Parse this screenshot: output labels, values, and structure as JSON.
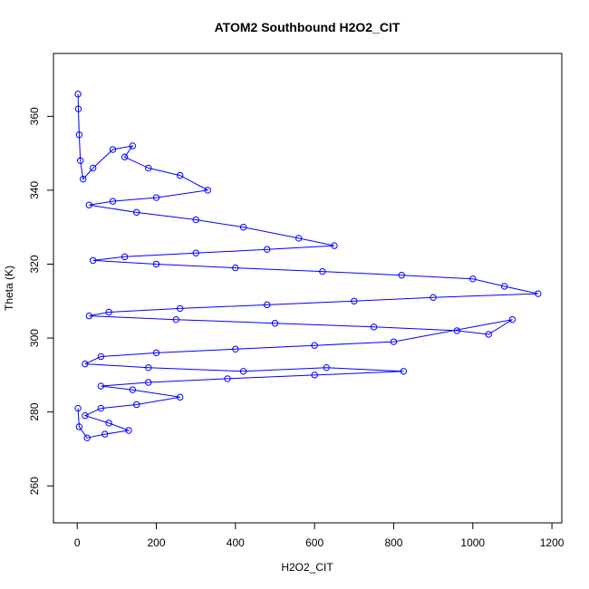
{
  "chart_data": {
    "type": "scatter",
    "title": "ATOM2 Southbound H2O2_CIT",
    "xlabel": "H2O2_CIT",
    "ylabel": "Theta (K)",
    "xlim": [
      -60,
      1225
    ],
    "ylim": [
      250,
      377
    ],
    "x_ticks": [
      0,
      200,
      400,
      600,
      800,
      1000,
      1200
    ],
    "y_ticks": [
      260,
      280,
      300,
      320,
      340,
      360
    ],
    "grid": false,
    "legend": "none",
    "marker": "open-circle",
    "connected": true,
    "series_color": "#0000ff",
    "series": [
      {
        "values": [
          {
            "x": 2,
            "y": 366
          },
          {
            "x": 3,
            "y": 362
          },
          {
            "x": 5,
            "y": 355
          },
          {
            "x": 8,
            "y": 348
          },
          {
            "x": 15,
            "y": 343
          },
          {
            "x": 40,
            "y": 346
          },
          {
            "x": 90,
            "y": 351
          },
          {
            "x": 140,
            "y": 352
          },
          {
            "x": 120,
            "y": 349
          },
          {
            "x": 180,
            "y": 346
          },
          {
            "x": 260,
            "y": 344
          },
          {
            "x": 330,
            "y": 340
          },
          {
            "x": 200,
            "y": 338
          },
          {
            "x": 90,
            "y": 337
          },
          {
            "x": 30,
            "y": 336
          },
          {
            "x": 150,
            "y": 334
          },
          {
            "x": 300,
            "y": 332
          },
          {
            "x": 420,
            "y": 330
          },
          {
            "x": 560,
            "y": 327
          },
          {
            "x": 650,
            "y": 325
          },
          {
            "x": 480,
            "y": 324
          },
          {
            "x": 300,
            "y": 323
          },
          {
            "x": 120,
            "y": 322
          },
          {
            "x": 40,
            "y": 321
          },
          {
            "x": 200,
            "y": 320
          },
          {
            "x": 400,
            "y": 319
          },
          {
            "x": 620,
            "y": 318
          },
          {
            "x": 820,
            "y": 317
          },
          {
            "x": 1000,
            "y": 316
          },
          {
            "x": 1080,
            "y": 314
          },
          {
            "x": 1165,
            "y": 312
          },
          {
            "x": 900,
            "y": 311
          },
          {
            "x": 700,
            "y": 310
          },
          {
            "x": 480,
            "y": 309
          },
          {
            "x": 260,
            "y": 308
          },
          {
            "x": 80,
            "y": 307
          },
          {
            "x": 30,
            "y": 306
          },
          {
            "x": 250,
            "y": 305
          },
          {
            "x": 500,
            "y": 304
          },
          {
            "x": 750,
            "y": 303
          },
          {
            "x": 960,
            "y": 302
          },
          {
            "x": 1040,
            "y": 301
          },
          {
            "x": 1100,
            "y": 305
          },
          {
            "x": 800,
            "y": 299
          },
          {
            "x": 600,
            "y": 298
          },
          {
            "x": 400,
            "y": 297
          },
          {
            "x": 200,
            "y": 296
          },
          {
            "x": 60,
            "y": 295
          },
          {
            "x": 20,
            "y": 293
          },
          {
            "x": 180,
            "y": 292
          },
          {
            "x": 420,
            "y": 291
          },
          {
            "x": 630,
            "y": 292
          },
          {
            "x": 825,
            "y": 291
          },
          {
            "x": 600,
            "y": 290
          },
          {
            "x": 380,
            "y": 289
          },
          {
            "x": 180,
            "y": 288
          },
          {
            "x": 60,
            "y": 287
          },
          {
            "x": 140,
            "y": 286
          },
          {
            "x": 260,
            "y": 284
          },
          {
            "x": 150,
            "y": 282
          },
          {
            "x": 60,
            "y": 281
          },
          {
            "x": 20,
            "y": 279
          },
          {
            "x": 80,
            "y": 277
          },
          {
            "x": 130,
            "y": 275
          },
          {
            "x": 70,
            "y": 274
          },
          {
            "x": 25,
            "y": 273
          },
          {
            "x": 5,
            "y": 276
          },
          {
            "x": 2,
            "y": 281
          }
        ]
      }
    ]
  }
}
